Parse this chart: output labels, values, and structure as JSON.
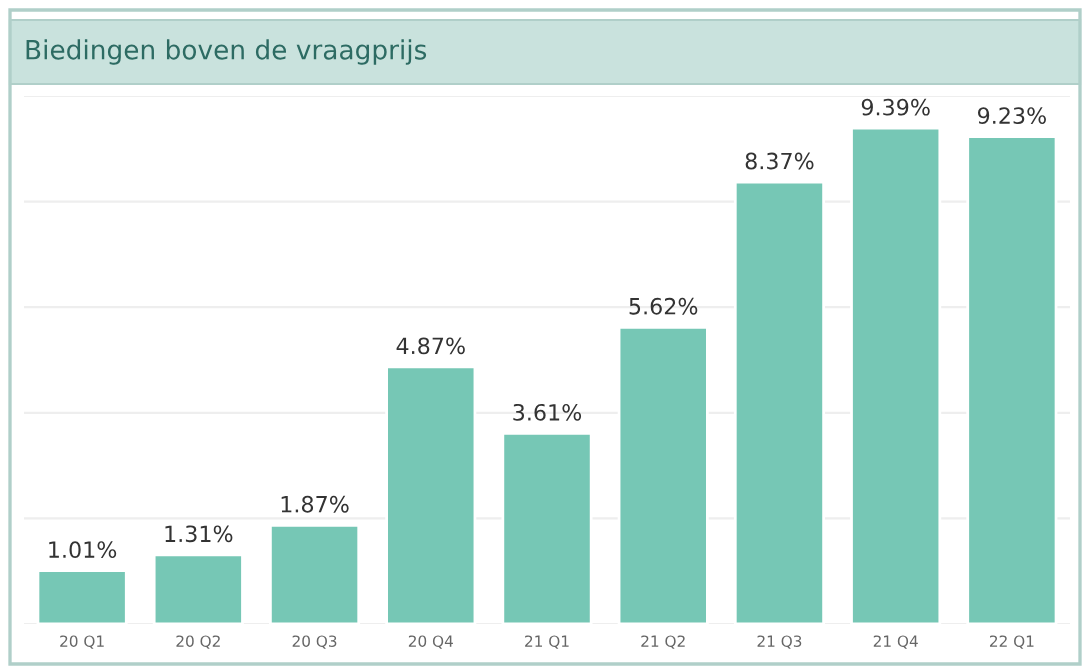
{
  "chart_data": {
    "type": "bar",
    "title": "Biedingen boven de vraagprijs",
    "categories": [
      "20 Q1",
      "20 Q2",
      "20 Q3",
      "20 Q4",
      "21 Q1",
      "21 Q2",
      "21 Q3",
      "21 Q4",
      "22 Q1"
    ],
    "values": [
      1.01,
      1.31,
      1.87,
      4.87,
      3.61,
      5.62,
      8.37,
      9.39,
      9.23
    ],
    "value_labels": [
      "1.01%",
      "1.31%",
      "1.87%",
      "4.87%",
      "3.61%",
      "5.62%",
      "8.37%",
      "9.39%",
      "9.23%"
    ],
    "color": "#76c7b5",
    "yticks": [
      {
        "value": 0,
        "label": null
      },
      {
        "value": 2,
        "label": null
      },
      {
        "value": 4,
        "label": null
      },
      {
        "value": 6,
        "label": null
      },
      {
        "value": 8,
        "label": null
      },
      {
        "value": 10,
        "label": null
      }
    ],
    "tick_labels": "x",
    "grid": "y"
  }
}
